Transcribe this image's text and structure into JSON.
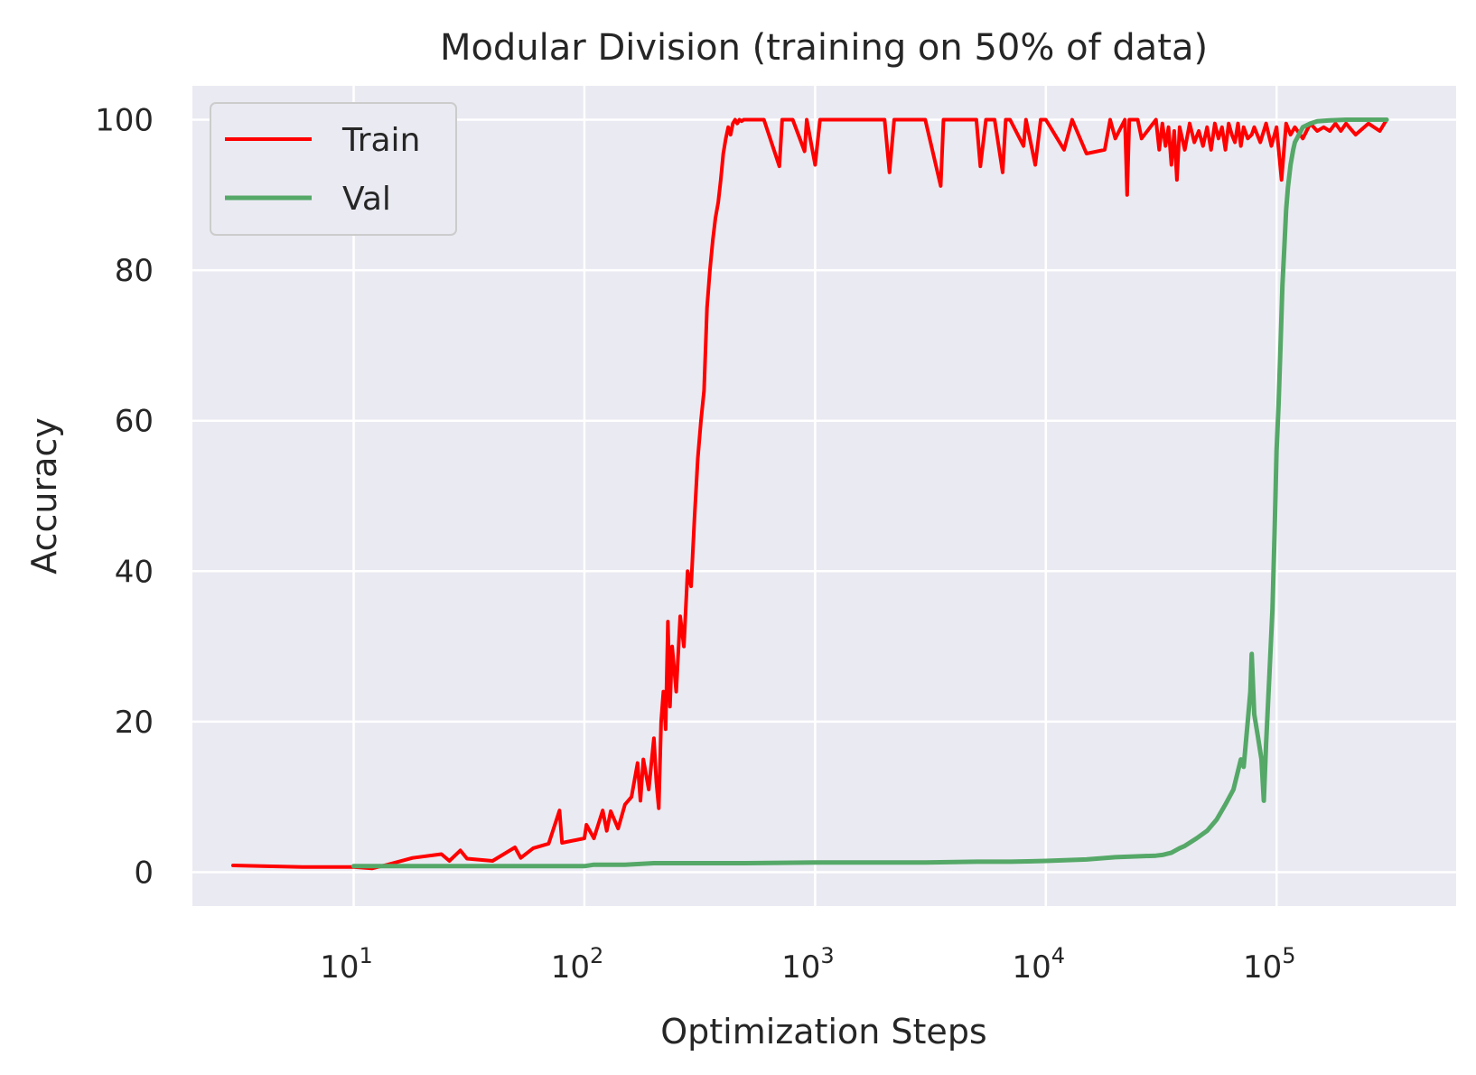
{
  "chart_data": {
    "type": "line",
    "title": "Modular Division (training on 50% of data)",
    "xlabel": "Optimization Steps",
    "ylabel": "Accuracy",
    "xscale": "log",
    "xlim": [
      2,
      600000
    ],
    "ylim": [
      -4.5,
      104.5
    ],
    "grid": true,
    "legend_position": "top-left",
    "x_ticks": [
      {
        "value": 10,
        "base": "10",
        "exp": "1"
      },
      {
        "value": 100,
        "base": "10",
        "exp": "2"
      },
      {
        "value": 1000,
        "base": "10",
        "exp": "3"
      },
      {
        "value": 10000,
        "base": "10",
        "exp": "4"
      },
      {
        "value": 100000,
        "base": "10",
        "exp": "5"
      }
    ],
    "y_ticks": [
      {
        "value": 0,
        "label": "0"
      },
      {
        "value": 20,
        "label": "20"
      },
      {
        "value": 40,
        "label": "40"
      },
      {
        "value": 60,
        "label": "60"
      },
      {
        "value": 80,
        "label": "80"
      },
      {
        "value": 100,
        "label": "100"
      }
    ],
    "series": [
      {
        "name": "Train",
        "color": "#ff0000",
        "x": [
          3,
          4,
          6,
          10,
          12,
          14,
          18,
          24,
          26,
          29,
          31,
          40,
          50,
          53,
          60,
          70,
          78,
          80,
          100,
          102,
          110,
          120,
          125,
          130,
          140,
          150,
          160,
          170,
          175,
          180,
          190,
          200,
          205,
          210,
          215,
          220,
          225,
          230,
          235,
          240,
          250,
          260,
          270,
          280,
          290,
          300,
          310,
          320,
          330,
          340,
          350,
          360,
          370,
          380,
          390,
          400,
          410,
          420,
          430,
          440,
          450,
          460,
          470,
          480,
          490,
          500,
          520,
          550,
          600,
          700,
          720,
          750,
          800,
          900,
          920,
          1000,
          1050,
          1100,
          1500,
          2000,
          2100,
          2200,
          3000,
          3500,
          3600,
          4000,
          5000,
          5200,
          5500,
          6000,
          6500,
          6700,
          7000,
          8000,
          8200,
          9000,
          9500,
          10000,
          12000,
          13000,
          15000,
          18000,
          19000,
          20000,
          22000,
          22500,
          23000,
          25000,
          26000,
          30000,
          31000,
          32000,
          33000,
          34000,
          35000,
          36000,
          37000,
          38000,
          40000,
          42000,
          44000,
          46000,
          48000,
          50000,
          52000,
          54000,
          56000,
          58000,
          60000,
          62000,
          64000,
          66000,
          68000,
          70000,
          72000,
          75000,
          78000,
          80000,
          85000,
          90000,
          95000,
          100000,
          105000,
          110000,
          115000,
          120000,
          130000,
          140000,
          150000,
          160000,
          170000,
          180000,
          190000,
          200000,
          220000,
          250000,
          280000,
          300000
        ],
        "values": [
          0.9,
          0.8,
          0.7,
          0.7,
          0.5,
          1.0,
          1.9,
          2.4,
          1.5,
          2.9,
          1.8,
          1.5,
          3.3,
          1.9,
          3.2,
          3.8,
          8.2,
          3.9,
          4.5,
          6.3,
          4.5,
          8.2,
          5.5,
          8.1,
          5.8,
          9.0,
          10.0,
          14.5,
          9.5,
          15.0,
          11.0,
          17.8,
          12.0,
          8.5,
          20.0,
          24.0,
          19.0,
          33.3,
          22.0,
          30.0,
          24.0,
          34.0,
          30.0,
          40.0,
          38.0,
          47.0,
          55.0,
          60.0,
          64.0,
          75.0,
          80.0,
          84.0,
          87.0,
          89.0,
          92.0,
          95.5,
          97.5,
          99.0,
          98.0,
          99.5,
          100.0,
          99.5,
          100.0,
          99.8,
          100.0,
          100.0,
          100.0,
          100.0,
          100.0,
          93.8,
          100.0,
          100.0,
          100.0,
          95.8,
          100.0,
          94.0,
          100.0,
          100.0,
          100.0,
          100.0,
          93.0,
          100.0,
          100.0,
          91.2,
          100.0,
          100.0,
          100.0,
          93.8,
          100.0,
          100.0,
          93.0,
          100.0,
          100.0,
          96.5,
          100.0,
          94.0,
          100.0,
          100.0,
          96.0,
          100.0,
          95.5,
          96.0,
          100.0,
          97.5,
          100.0,
          90.0,
          100.0,
          100.0,
          97.5,
          100.0,
          96.0,
          99.5,
          96.5,
          99.0,
          94.0,
          98.5,
          92.0,
          99.0,
          96.0,
          99.5,
          97.0,
          98.5,
          96.5,
          99.0,
          96.0,
          99.5,
          97.5,
          99.0,
          96.0,
          99.5,
          98.0,
          97.0,
          99.5,
          96.5,
          99.0,
          97.5,
          98.0,
          99.0,
          97.0,
          99.5,
          96.5,
          99.0,
          92.0,
          99.5,
          98.0,
          99.0,
          97.5,
          99.5,
          98.5,
          99.0,
          98.5,
          99.5,
          98.5,
          99.5,
          98.0,
          99.5,
          98.5,
          100.0
        ]
      },
      {
        "name": "Val",
        "color": "#55a868",
        "x": [
          10,
          20,
          50,
          100,
          110,
          150,
          200,
          300,
          500,
          1000,
          2000,
          3000,
          5000,
          7000,
          10000,
          15000,
          20000,
          30000,
          32000,
          35000,
          38000,
          40000,
          45000,
          50000,
          55000,
          60000,
          65000,
          70000,
          72000,
          75000,
          77000,
          78000,
          80000,
          83000,
          86000,
          88000,
          90000,
          93000,
          96000,
          98000,
          100000,
          102000,
          104000,
          106000,
          108000,
          110000,
          112000,
          115000,
          118000,
          120000,
          125000,
          130000,
          140000,
          150000,
          170000,
          200000,
          250000,
          300000
        ],
        "values": [
          0.8,
          0.8,
          0.8,
          0.8,
          1.0,
          1.0,
          1.2,
          1.2,
          1.2,
          1.3,
          1.3,
          1.3,
          1.4,
          1.4,
          1.5,
          1.7,
          2.0,
          2.2,
          2.3,
          2.6,
          3.2,
          3.5,
          4.5,
          5.5,
          7.0,
          9.0,
          11.0,
          15.0,
          14.0,
          20.0,
          24.0,
          29.0,
          21.0,
          18.0,
          15.0,
          9.5,
          17.0,
          26.0,
          35.0,
          45.0,
          56.0,
          62.0,
          70.0,
          78.0,
          83.0,
          88.0,
          91.0,
          94.0,
          96.0,
          97.0,
          98.0,
          99.0,
          99.5,
          99.8,
          99.9,
          100.0,
          100.0,
          100.0
        ]
      }
    ]
  }
}
